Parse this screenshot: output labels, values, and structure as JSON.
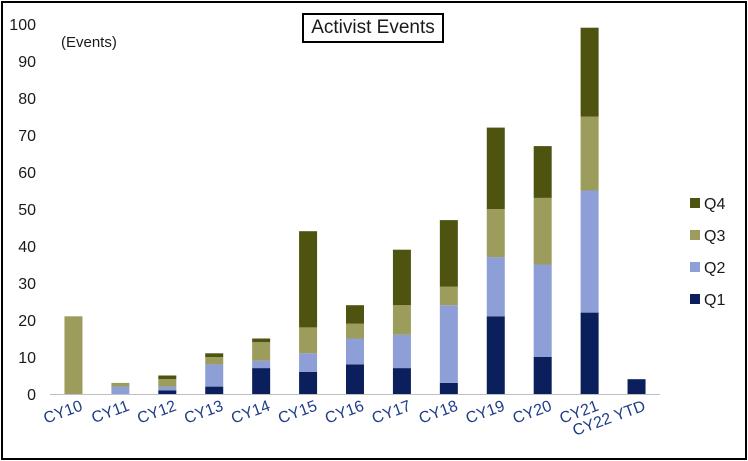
{
  "chart_data": {
    "type": "bar",
    "stacked": true,
    "title": "Activist Events",
    "ylabel": "(Events)",
    "xlabel": "",
    "ylim": [
      0,
      100
    ],
    "yticks": [
      0,
      10,
      20,
      30,
      40,
      50,
      60,
      70,
      80,
      90,
      100
    ],
    "grid": false,
    "legend_position": "right",
    "categories": [
      "CY10",
      "CY11",
      "CY12",
      "CY13",
      "CY14",
      "CY15",
      "CY16",
      "CY17",
      "CY18",
      "CY19",
      "CY20",
      "CY21",
      "CY22 YTD"
    ],
    "series": [
      {
        "name": "Q1",
        "color": "#0a1f5c",
        "values": [
          0,
          0,
          1,
          2,
          7,
          6,
          8,
          7,
          3,
          21,
          10,
          22,
          4
        ]
      },
      {
        "name": "Q2",
        "color": "#8e9ed6",
        "values": [
          0,
          2,
          1,
          6,
          2,
          5,
          7,
          9,
          21,
          16,
          25,
          33,
          0
        ]
      },
      {
        "name": "Q3",
        "color": "#9c9d5c",
        "values": [
          21,
          1,
          2,
          2,
          5,
          7,
          4,
          8,
          5,
          13,
          18,
          20,
          0
        ]
      },
      {
        "name": "Q4",
        "color": "#4e5310",
        "values": [
          0,
          0,
          1,
          1,
          1,
          26,
          5,
          15,
          18,
          22,
          14,
          24,
          0
        ]
      }
    ],
    "legend_order": [
      "Q4",
      "Q3",
      "Q2",
      "Q1"
    ]
  }
}
